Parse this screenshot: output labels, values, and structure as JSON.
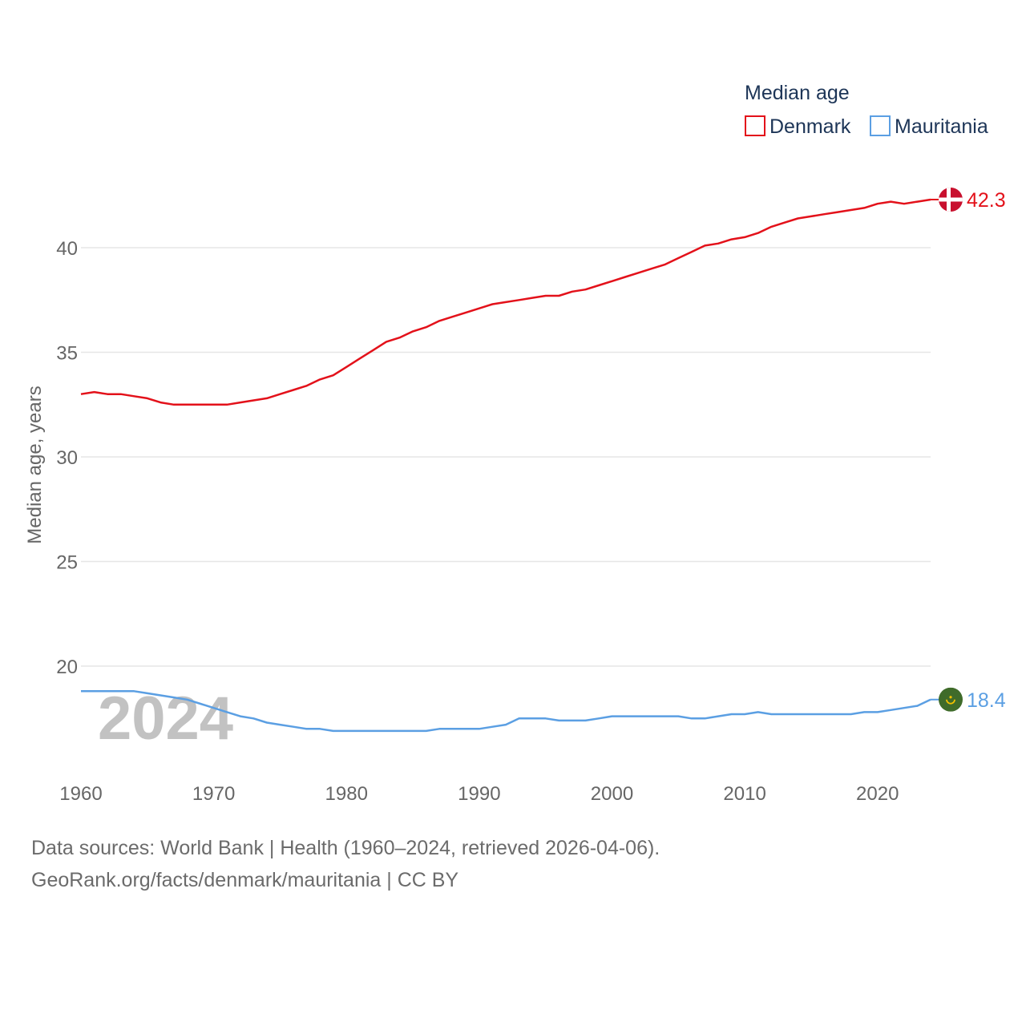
{
  "chart_data": {
    "type": "line",
    "title": "Median age",
    "ylabel": "Median age, years",
    "xlabel": "",
    "xlim": [
      1960,
      2024
    ],
    "ylim": [
      15,
      43
    ],
    "yticks": [
      20,
      25,
      30,
      35,
      40
    ],
    "xticks": [
      1960,
      1970,
      1980,
      1990,
      2000,
      2010,
      2020
    ],
    "ytick_labels": [
      "20",
      "25",
      "30",
      "35",
      "40"
    ],
    "xtick_labels": [
      "1960",
      "1970",
      "1980",
      "1990",
      "2000",
      "2010",
      "2020"
    ],
    "grid": true,
    "legend_position": "top-right",
    "year_watermark": "2024",
    "x": [
      1960,
      1961,
      1962,
      1963,
      1964,
      1965,
      1966,
      1967,
      1968,
      1969,
      1970,
      1971,
      1972,
      1973,
      1974,
      1975,
      1976,
      1977,
      1978,
      1979,
      1980,
      1981,
      1982,
      1983,
      1984,
      1985,
      1986,
      1987,
      1988,
      1989,
      1990,
      1991,
      1992,
      1993,
      1994,
      1995,
      1996,
      1997,
      1998,
      1999,
      2000,
      2001,
      2002,
      2003,
      2004,
      2005,
      2006,
      2007,
      2008,
      2009,
      2010,
      2011,
      2012,
      2013,
      2014,
      2015,
      2016,
      2017,
      2018,
      2019,
      2020,
      2021,
      2022,
      2023,
      2024
    ],
    "series": [
      {
        "name": "Denmark",
        "color": "#e3111a",
        "end_label": "42.3",
        "flag": "denmark-flag",
        "values": [
          33.0,
          33.1,
          33.0,
          33.0,
          32.9,
          32.8,
          32.6,
          32.5,
          32.5,
          32.5,
          32.5,
          32.5,
          32.6,
          32.7,
          32.8,
          33.0,
          33.2,
          33.4,
          33.7,
          33.9,
          34.3,
          34.7,
          35.1,
          35.5,
          35.7,
          36.0,
          36.2,
          36.5,
          36.7,
          36.9,
          37.1,
          37.3,
          37.4,
          37.5,
          37.6,
          37.7,
          37.7,
          37.9,
          38.0,
          38.2,
          38.4,
          38.6,
          38.8,
          39.0,
          39.2,
          39.5,
          39.8,
          40.1,
          40.2,
          40.4,
          40.5,
          40.7,
          41.0,
          41.2,
          41.4,
          41.5,
          41.6,
          41.7,
          41.8,
          41.9,
          42.1,
          42.2,
          42.1,
          42.2,
          42.3
        ]
      },
      {
        "name": "Mauritania",
        "color": "#5b9fe3",
        "end_label": "18.4",
        "flag": "mauritania-flag",
        "values": [
          18.8,
          18.8,
          18.8,
          18.8,
          18.8,
          18.7,
          18.6,
          18.5,
          18.4,
          18.2,
          18.0,
          17.8,
          17.6,
          17.5,
          17.3,
          17.2,
          17.1,
          17.0,
          17.0,
          16.9,
          16.9,
          16.9,
          16.9,
          16.9,
          16.9,
          16.9,
          16.9,
          17.0,
          17.0,
          17.0,
          17.0,
          17.1,
          17.2,
          17.5,
          17.5,
          17.5,
          17.4,
          17.4,
          17.4,
          17.5,
          17.6,
          17.6,
          17.6,
          17.6,
          17.6,
          17.6,
          17.5,
          17.5,
          17.6,
          17.7,
          17.7,
          17.8,
          17.7,
          17.7,
          17.7,
          17.7,
          17.7,
          17.7,
          17.7,
          17.8,
          17.8,
          17.9,
          18.0,
          18.1,
          18.4
        ]
      }
    ]
  },
  "footer": {
    "line1": "Data sources: World Bank | Health (1960–2024, retrieved 2026-04-06).",
    "line2": "GeoRank.org/facts/denmark/mauritania | CC BY"
  }
}
